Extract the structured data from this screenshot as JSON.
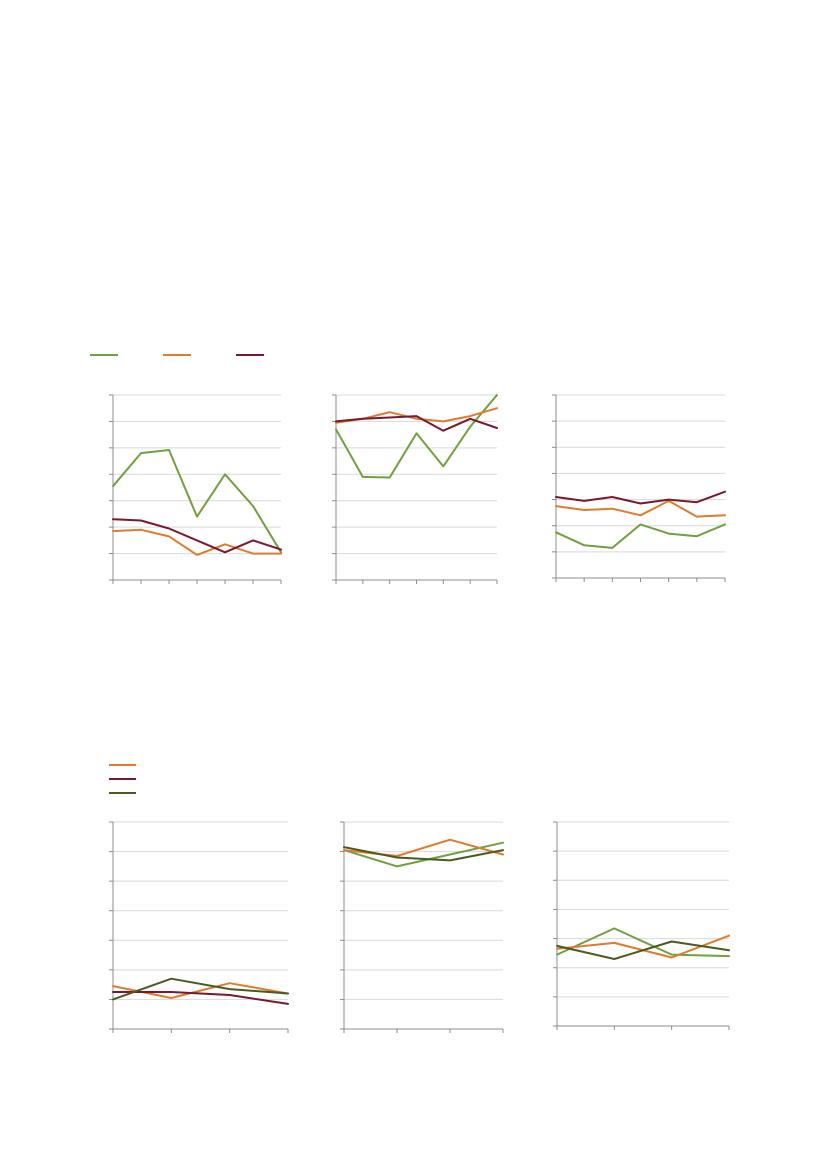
{
  "legend_top": {
    "series_colors": [
      "#70a040",
      "#e07b2e",
      "#7a1830"
    ]
  },
  "legend_bottom": {
    "series_colors": [
      "#e07b2e",
      "#7a1830",
      "#4a5a20"
    ]
  },
  "chart_data": [
    {
      "type": "line",
      "group": "top",
      "grid": true,
      "ylim": [
        0,
        7
      ],
      "x": [
        0,
        1,
        2,
        3,
        4,
        5,
        6
      ],
      "series": [
        {
          "color": "#70a040",
          "values": [
            3.55,
            4.8,
            4.92,
            2.4,
            4.0,
            2.8,
            1.05
          ]
        },
        {
          "color": "#e07b2e",
          "values": [
            1.85,
            1.9,
            1.65,
            0.95,
            1.35,
            1.0,
            1.0
          ]
        },
        {
          "color": "#7a1830",
          "values": [
            2.3,
            2.25,
            1.95,
            1.5,
            1.05,
            1.5,
            1.15
          ]
        }
      ]
    },
    {
      "type": "line",
      "group": "top",
      "grid": true,
      "ylim": [
        0,
        7
      ],
      "x": [
        0,
        1,
        2,
        3,
        4,
        5,
        6
      ],
      "series": [
        {
          "color": "#70a040",
          "values": [
            5.7,
            3.9,
            3.88,
            5.55,
            4.3,
            5.8,
            7.0
          ]
        },
        {
          "color": "#e07b2e",
          "values": [
            5.95,
            6.1,
            6.35,
            6.1,
            6.0,
            6.2,
            6.5
          ]
        },
        {
          "color": "#7a1830",
          "values": [
            6.0,
            6.1,
            6.15,
            6.2,
            5.65,
            6.1,
            5.75
          ]
        }
      ]
    },
    {
      "type": "line",
      "group": "top",
      "grid": true,
      "ylim": [
        0,
        7
      ],
      "x": [
        0,
        1,
        2,
        3,
        4,
        5,
        6
      ],
      "series": [
        {
          "color": "#70a040",
          "values": [
            1.75,
            1.25,
            1.15,
            2.05,
            1.7,
            1.6,
            2.05
          ]
        },
        {
          "color": "#e07b2e",
          "values": [
            2.75,
            2.6,
            2.65,
            2.4,
            2.95,
            2.35,
            2.4
          ]
        },
        {
          "color": "#7a1830",
          "values": [
            3.1,
            2.95,
            3.1,
            2.85,
            3.0,
            2.9,
            3.3
          ]
        }
      ]
    },
    {
      "type": "line",
      "group": "bottom",
      "grid": true,
      "ylim": [
        0,
        7
      ],
      "x": [
        0,
        1,
        2,
        3
      ],
      "series": [
        {
          "color": "#e07b2e",
          "values": [
            1.45,
            1.05,
            1.55,
            1.2
          ]
        },
        {
          "color": "#7a1830",
          "values": [
            1.25,
            1.25,
            1.15,
            0.85
          ]
        },
        {
          "color": "#4a5a20",
          "values": [
            1.0,
            1.7,
            1.35,
            1.2
          ]
        }
      ]
    },
    {
      "type": "line",
      "group": "bottom",
      "grid": true,
      "ylim": [
        0,
        7
      ],
      "x": [
        0,
        1,
        2,
        3
      ],
      "series": [
        {
          "color": "#70a040",
          "values": [
            6.05,
            5.5,
            5.9,
            6.3
          ]
        },
        {
          "color": "#e07b2e",
          "values": [
            6.05,
            5.85,
            6.4,
            5.9
          ]
        },
        {
          "color": "#4a5a20",
          "values": [
            6.15,
            5.8,
            5.7,
            6.05
          ]
        }
      ]
    },
    {
      "type": "line",
      "group": "bottom",
      "grid": true,
      "ylim": [
        0,
        7
      ],
      "x": [
        0,
        1,
        2,
        3
      ],
      "series": [
        {
          "color": "#70a040",
          "values": [
            2.45,
            3.35,
            2.45,
            2.4
          ]
        },
        {
          "color": "#e07b2e",
          "values": [
            2.65,
            2.85,
            2.35,
            3.1
          ]
        },
        {
          "color": "#4a5a20",
          "values": [
            2.75,
            2.3,
            2.9,
            2.6
          ]
        }
      ]
    }
  ]
}
